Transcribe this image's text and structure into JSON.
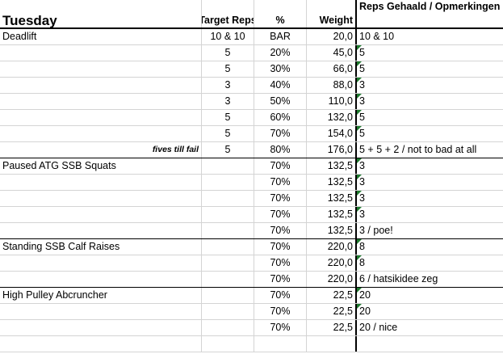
{
  "header": {
    "day": "Tuesday",
    "target_reps": "Target Reps",
    "percent": "%",
    "weight": "Weight",
    "reps_done": "Reps Gehaald / Opmerkingen"
  },
  "colors": {
    "error_indicator": "#1e7a2e"
  },
  "rows": [
    {
      "exercise": "Deadlift",
      "note": "",
      "target": "10 & 10",
      "pct": "BAR",
      "weight": "20,0",
      "done": "10 & 10",
      "flag": false,
      "sep": false
    },
    {
      "exercise": "",
      "note": "",
      "target": "5",
      "pct": "20%",
      "weight": "45,0",
      "done": "5",
      "flag": true,
      "sep": false
    },
    {
      "exercise": "",
      "note": "",
      "target": "5",
      "pct": "30%",
      "weight": "66,0",
      "done": "5",
      "flag": true,
      "sep": false
    },
    {
      "exercise": "",
      "note": "",
      "target": "3",
      "pct": "40%",
      "weight": "88,0",
      "done": "3",
      "flag": true,
      "sep": false
    },
    {
      "exercise": "",
      "note": "",
      "target": "3",
      "pct": "50%",
      "weight": "110,0",
      "done": "3",
      "flag": true,
      "sep": false
    },
    {
      "exercise": "",
      "note": "",
      "target": "5",
      "pct": "60%",
      "weight": "132,0",
      "done": "5",
      "flag": true,
      "sep": false
    },
    {
      "exercise": "",
      "note": "",
      "target": "5",
      "pct": "70%",
      "weight": "154,0",
      "done": "5",
      "flag": true,
      "sep": false
    },
    {
      "exercise": "",
      "note": "fives till fail",
      "target": "5",
      "pct": "80%",
      "weight": "176,0",
      "done": "5 + 5 + 2 / not to bad at all",
      "flag": false,
      "sep": true
    },
    {
      "exercise": "Paused ATG SSB Squats",
      "note": "",
      "target": "",
      "pct": "70%",
      "weight": "132,5",
      "done": "3",
      "flag": true,
      "sep": false
    },
    {
      "exercise": "",
      "note": "",
      "target": "",
      "pct": "70%",
      "weight": "132,5",
      "done": "3",
      "flag": true,
      "sep": false
    },
    {
      "exercise": "",
      "note": "",
      "target": "",
      "pct": "70%",
      "weight": "132,5",
      "done": "3",
      "flag": true,
      "sep": false
    },
    {
      "exercise": "",
      "note": "",
      "target": "",
      "pct": "70%",
      "weight": "132,5",
      "done": "3",
      "flag": true,
      "sep": false
    },
    {
      "exercise": "",
      "note": "",
      "target": "",
      "pct": "70%",
      "weight": "132,5",
      "done": "3 / poe!",
      "flag": false,
      "sep": true
    },
    {
      "exercise": "Standing SSB Calf Raises",
      "note": "",
      "target": "",
      "pct": "70%",
      "weight": "220,0",
      "done": "8",
      "flag": true,
      "sep": false
    },
    {
      "exercise": "",
      "note": "",
      "target": "",
      "pct": "70%",
      "weight": "220,0",
      "done": "8",
      "flag": true,
      "sep": false
    },
    {
      "exercise": "",
      "note": "",
      "target": "",
      "pct": "70%",
      "weight": "220,0",
      "done": "6 / hatsikidee zeg",
      "flag": false,
      "sep": true
    },
    {
      "exercise": "High Pulley Abcruncher",
      "note": "",
      "target": "",
      "pct": "70%",
      "weight": "22,5",
      "done": "20",
      "flag": true,
      "sep": false
    },
    {
      "exercise": "",
      "note": "",
      "target": "",
      "pct": "70%",
      "weight": "22,5",
      "done": "20",
      "flag": true,
      "sep": false
    },
    {
      "exercise": "",
      "note": "",
      "target": "",
      "pct": "70%",
      "weight": "22,5",
      "done": "20 / nice",
      "flag": false,
      "sep": false
    },
    {
      "exercise": "",
      "note": "",
      "target": "",
      "pct": "",
      "weight": "",
      "done": "",
      "flag": false,
      "sep": false
    }
  ]
}
